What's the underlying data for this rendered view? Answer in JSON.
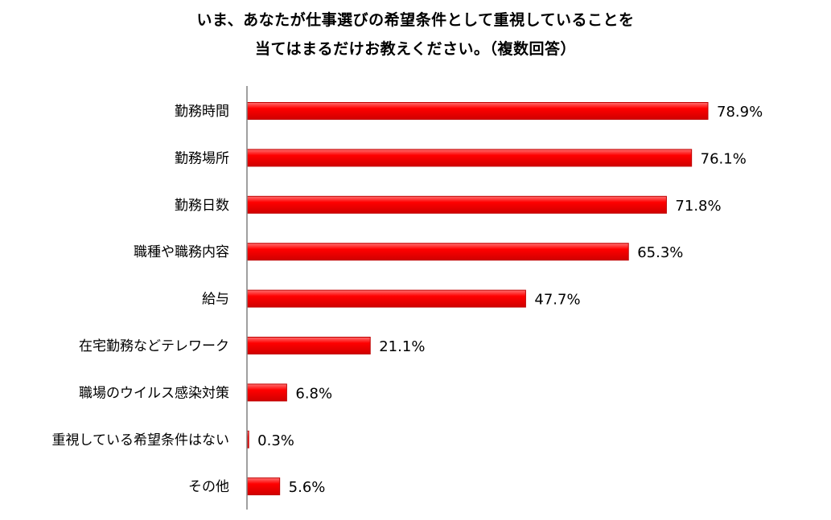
{
  "chart_data": {
    "type": "bar",
    "orientation": "horizontal",
    "title_lines": [
      "いま、あなたが仕事選びの希望条件として重視していることを",
      "当てはまるだけお教えください。（複数回答）"
    ],
    "categories": [
      "勤務時間",
      "勤務場所",
      "勤務日数",
      "職種や職務内容",
      "給与",
      "在宅勤務などテレワーク",
      "職場のウイルス感染対策",
      "重視している希望条件はない",
      "その他"
    ],
    "values": [
      78.9,
      76.1,
      71.8,
      65.3,
      47.7,
      21.1,
      6.8,
      0.3,
      5.6
    ],
    "value_labels": [
      "78.9%",
      "76.1%",
      "71.8%",
      "65.3%",
      "47.7%",
      "21.1%",
      "6.8%",
      "0.3%",
      "5.6%"
    ],
    "xlim": [
      0,
      80
    ],
    "bar_color": "#ff0000",
    "bar_edge_color": "#c00000",
    "axis_color": "#808080",
    "grid": false,
    "legend": "none"
  }
}
